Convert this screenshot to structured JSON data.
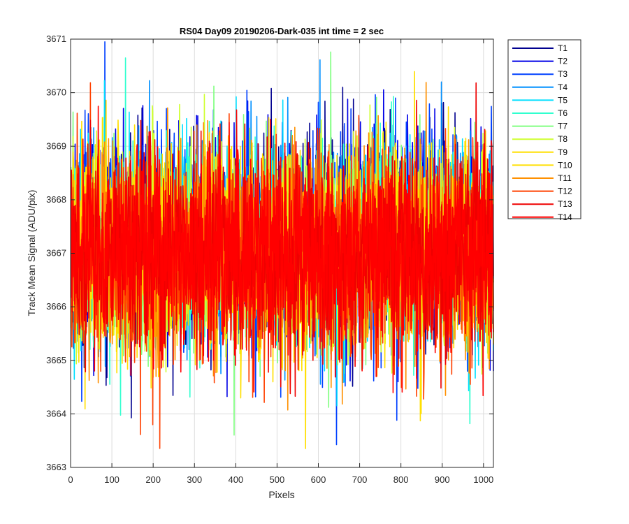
{
  "chart_data": {
    "type": "line",
    "title": "RS04 Day09 20190206-Dark-035 int time = 2 sec",
    "xlabel": "Pixels",
    "ylabel": "Track Mean Signal (ADU/pix)",
    "xlim": [
      0,
      1024
    ],
    "ylim": [
      3663,
      3671
    ],
    "xticks": [
      0,
      100,
      200,
      300,
      400,
      500,
      600,
      700,
      800,
      900,
      1000
    ],
    "yticks": [
      3663,
      3664,
      3665,
      3666,
      3667,
      3668,
      3669,
      3670,
      3671
    ],
    "grid": true,
    "legend_position": "outside-top-right",
    "x_start": 1,
    "x_end": 1024,
    "series": [
      {
        "name": "T1",
        "color": "#00008F",
        "mean": 3667.25,
        "std": 0.95
      },
      {
        "name": "T2",
        "color": "#0000E6",
        "mean": 3667.25,
        "std": 0.95
      },
      {
        "name": "T3",
        "color": "#0040FF",
        "mean": 3667.2,
        "std": 0.95
      },
      {
        "name": "T4",
        "color": "#0090FF",
        "mean": 3667.2,
        "std": 0.9
      },
      {
        "name": "T5",
        "color": "#00DFFF",
        "mean": 3667.15,
        "std": 0.9
      },
      {
        "name": "T6",
        "color": "#30FFCF",
        "mean": 3667.15,
        "std": 0.9
      },
      {
        "name": "T7",
        "color": "#80FF80",
        "mean": 3667.1,
        "std": 0.9
      },
      {
        "name": "T8",
        "color": "#CFFF30",
        "mean": 3667.1,
        "std": 0.9
      },
      {
        "name": "T9",
        "color": "#FFDF00",
        "mean": 3667.05,
        "std": 0.9
      },
      {
        "name": "T10",
        "color": "#FFDF00",
        "mean": 3667.05,
        "std": 0.9
      },
      {
        "name": "T11",
        "color": "#FF9000",
        "mean": 3667.0,
        "std": 0.95
      },
      {
        "name": "T12",
        "color": "#FF4000",
        "mean": 3667.0,
        "std": 0.95
      },
      {
        "name": "T13",
        "color": "#EF0000",
        "mean": 3667.0,
        "std": 0.95
      },
      {
        "name": "T14",
        "color": "#FF0000",
        "mean": 3667.0,
        "std": 0.9
      }
    ]
  }
}
